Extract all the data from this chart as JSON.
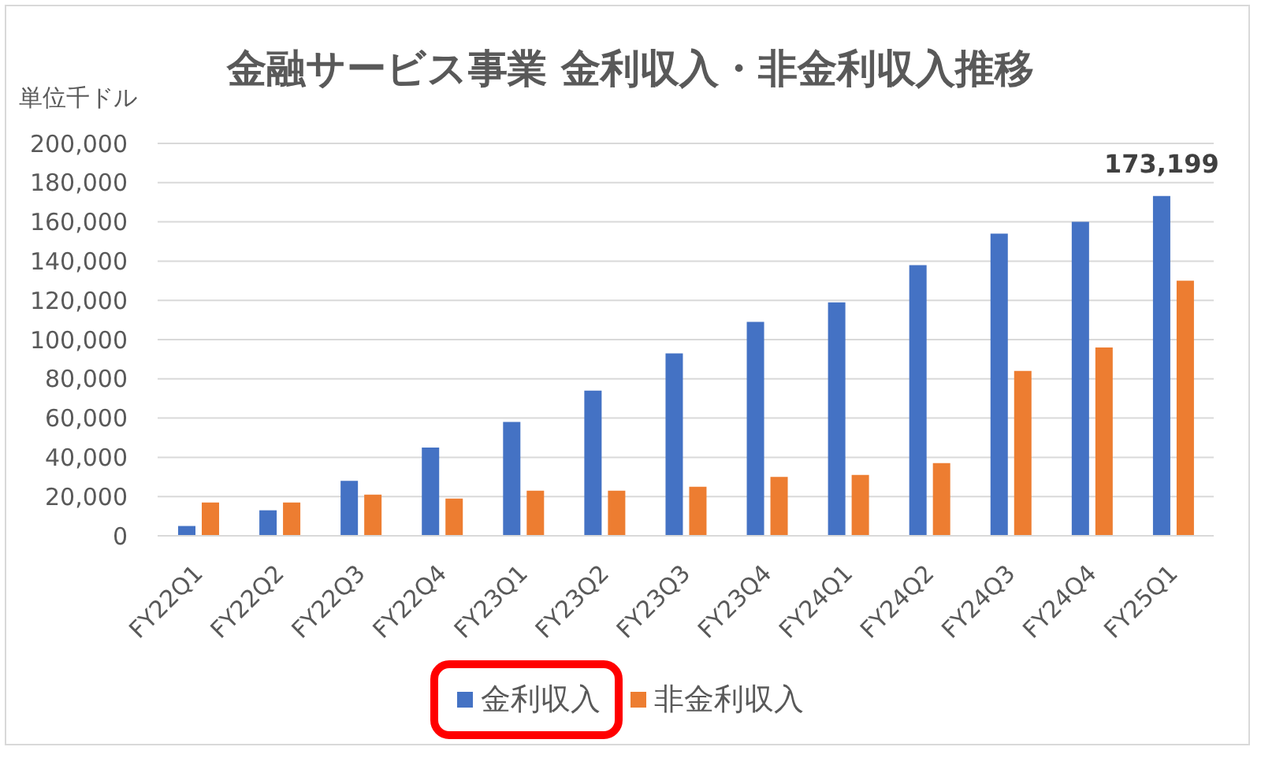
{
  "chart_data": {
    "type": "bar",
    "title": "金融サービス事業 金利収入・非金利収入推移",
    "ylabel": "単位千ドル",
    "categories": [
      "FY22Q1",
      "FY22Q2",
      "FY22Q3",
      "FY22Q4",
      "FY23Q1",
      "FY23Q2",
      "FY23Q3",
      "FY23Q4",
      "FY24Q1",
      "FY24Q2",
      "FY24Q3",
      "FY24Q4",
      "FY25Q1"
    ],
    "series": [
      {
        "name": "金利収入",
        "color": "#4472c4",
        "values": [
          5000,
          13000,
          28000,
          45000,
          58000,
          74000,
          93000,
          109000,
          119000,
          138000,
          154000,
          160000,
          173199
        ],
        "value_labels": [
          null,
          null,
          null,
          null,
          null,
          null,
          null,
          null,
          null,
          null,
          null,
          null,
          "173,199"
        ]
      },
      {
        "name": "非金利収入",
        "color": "#ed7d31",
        "values": [
          17000,
          17000,
          21000,
          19000,
          23000,
          23000,
          25000,
          30000,
          31000,
          37000,
          84000,
          96000,
          130000
        ]
      }
    ],
    "ylim": [
      0,
      200000
    ],
    "yticks": [
      0,
      {
        "value": 20000,
        "label": "20,000"
      },
      {
        "value": 40000,
        "label": "40,000"
      },
      {
        "value": 60000,
        "label": "60,000"
      },
      {
        "value": 80000,
        "label": "80,000"
      },
      {
        "value": 100000,
        "label": "100,000"
      },
      {
        "value": 120000,
        "label": "120,000"
      },
      {
        "value": 140000,
        "label": "140,000"
      },
      {
        "value": 160000,
        "label": "160,000"
      },
      {
        "value": 180000,
        "label": "180,000"
      },
      {
        "value": 200000,
        "label": "200,000"
      }
    ],
    "grid": "y",
    "legend": "bottom"
  }
}
